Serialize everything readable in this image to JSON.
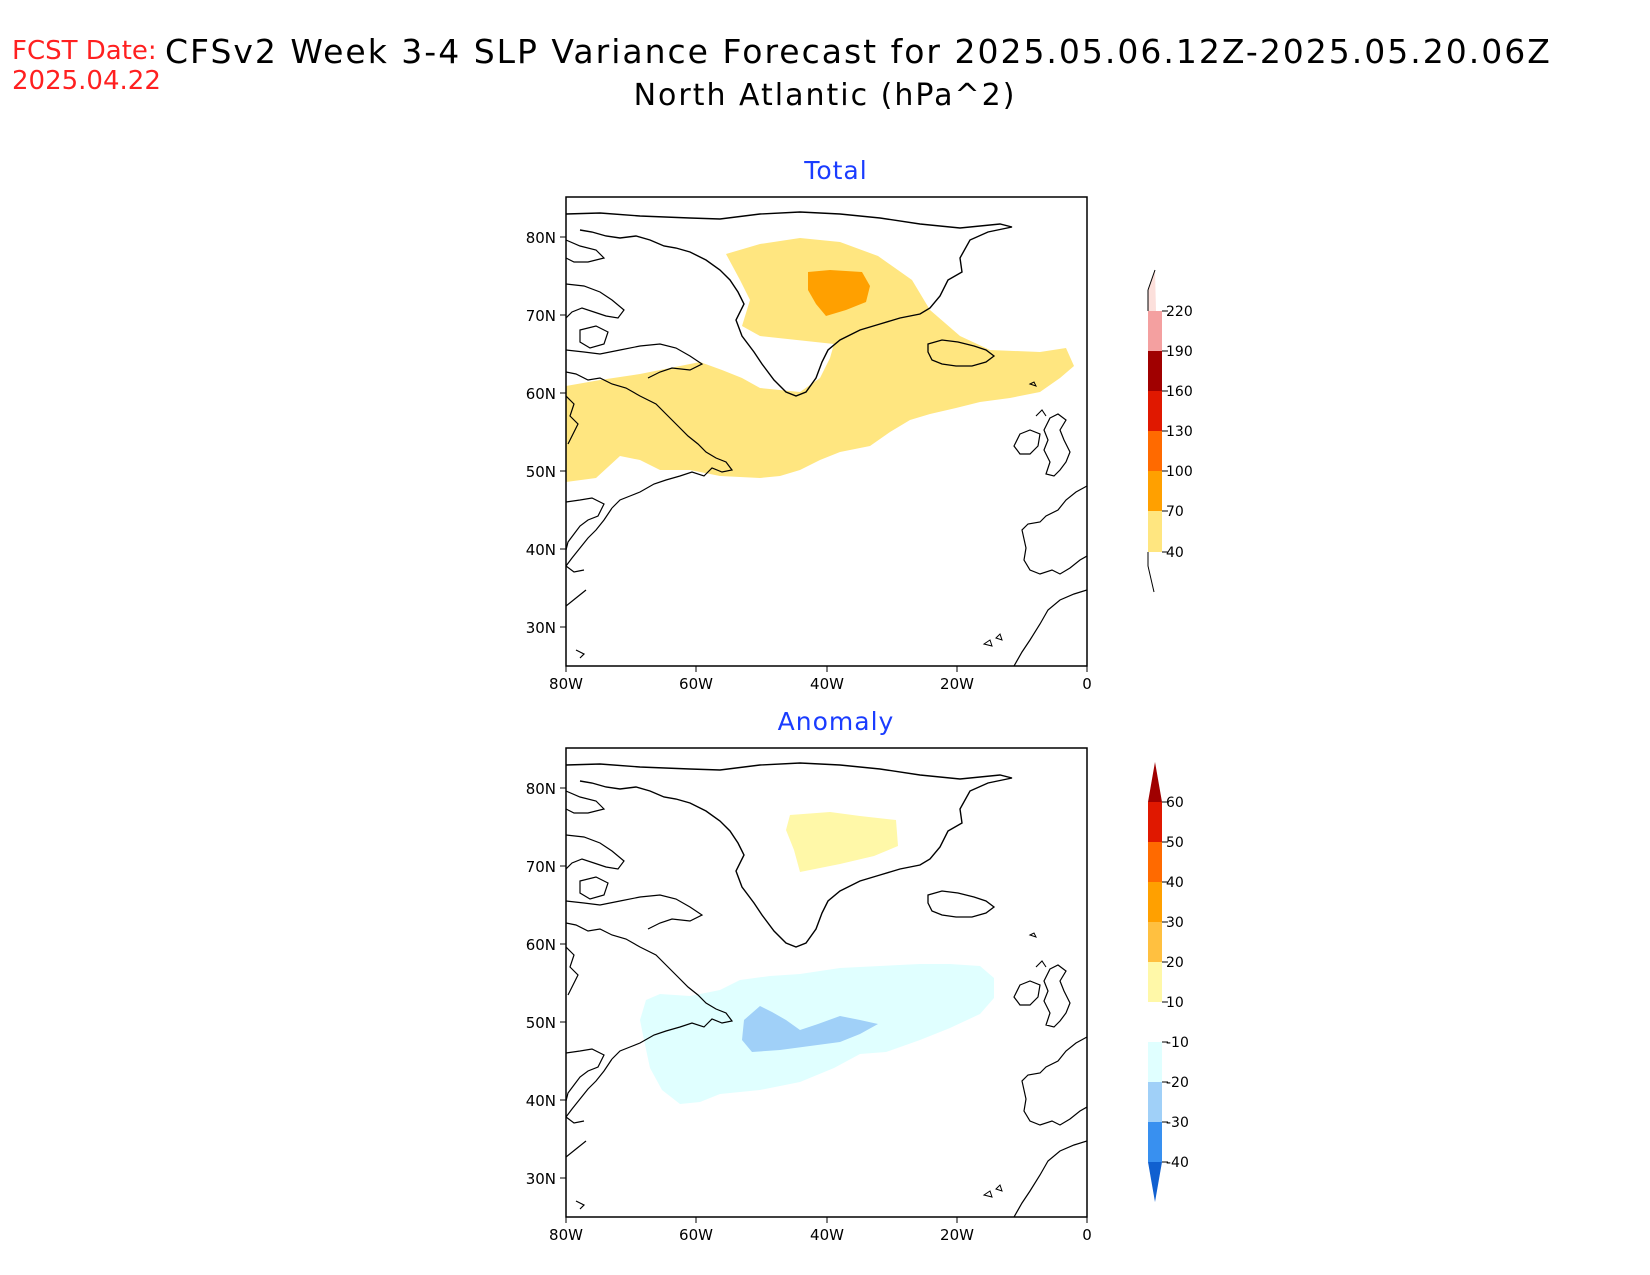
{
  "header": {
    "fcst_label": "FCST Date:",
    "fcst_date": "2025.04.22",
    "title_line1": "CFSv2 Week 3-4 SLP Variance Forecast for 2025.05.06.12Z-2025.05.20.06Z",
    "title_line2": "North Atlantic (hPa^2)"
  },
  "axes": {
    "lat_labels": [
      "80N",
      "70N",
      "60N",
      "50N",
      "40N",
      "30N"
    ],
    "lon_labels": [
      "80W",
      "60W",
      "40W",
      "20W",
      "0"
    ]
  },
  "panels": [
    {
      "title": "Total",
      "colorbar": {
        "labels": [
          "220",
          "190",
          "160",
          "130",
          "100",
          "70",
          "40"
        ],
        "colors": [
          "#fce0dc",
          "#f4a0a0",
          "#a00000",
          "#e01800",
          "#ff6a00",
          "#ffa000",
          "#ffe680"
        ]
      }
    },
    {
      "title": "Anomaly",
      "colorbar": {
        "labels": [
          "60",
          "50",
          "40",
          "30",
          "20",
          "10",
          "-10",
          "-20",
          "-30",
          "-40"
        ],
        "colors": [
          "#a00000",
          "#e01800",
          "#ff6a00",
          "#ffa000",
          "#ffc040",
          "#fff8a8",
          "#ffffff",
          "#e0ffff",
          "#a0d0f8",
          "#3890f0",
          "#1060d0"
        ]
      }
    }
  ]
}
